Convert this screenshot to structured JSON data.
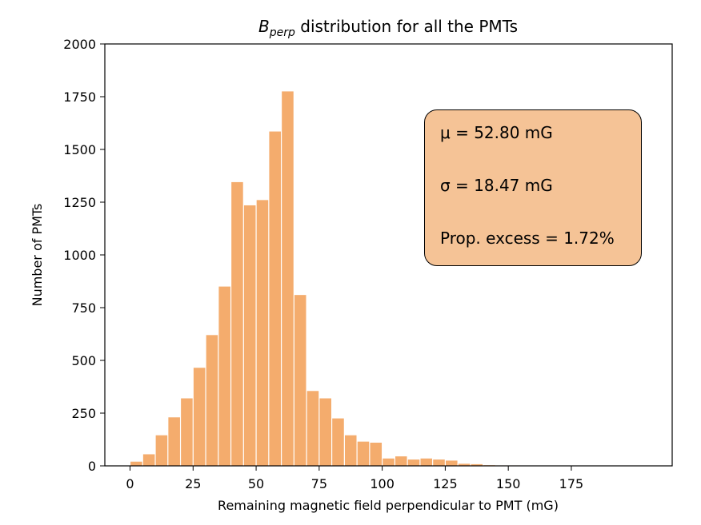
{
  "chart_data": {
    "type": "bar",
    "title": "B_perp distribution for all the PMTs",
    "title_main": "B",
    "title_subscript": "perp",
    "title_rest": " distribution for all the PMTs",
    "xlabel": "Remaining magnetic field perpendicular to PMT (mG)",
    "ylabel": "Number of PMTs",
    "xlim": [
      -10,
      215
    ],
    "ylim": [
      0,
      2000
    ],
    "xticks": [
      0,
      25,
      50,
      75,
      100,
      125,
      150,
      175
    ],
    "yticks": [
      0,
      250,
      500,
      750,
      1000,
      1250,
      1500,
      1750,
      2000
    ],
    "bin_width": 5,
    "bin_starts": [
      0,
      5,
      10,
      15,
      20,
      25,
      30,
      35,
      40,
      45,
      50,
      55,
      60,
      65,
      70,
      75,
      80,
      85,
      90,
      95,
      100,
      105,
      110,
      115,
      120,
      125,
      130,
      135,
      140,
      145,
      150,
      155,
      160,
      165,
      170,
      175,
      180,
      185,
      190,
      195
    ],
    "values": [
      20,
      55,
      145,
      230,
      320,
      465,
      620,
      850,
      1345,
      1235,
      1260,
      1585,
      1775,
      810,
      355,
      320,
      225,
      145,
      115,
      110,
      35,
      45,
      30,
      35,
      30,
      25,
      10,
      8,
      3,
      2,
      2,
      1,
      1,
      1,
      1,
      1,
      1,
      1,
      1,
      1
    ],
    "bar_color": "#f4ac6d",
    "annotation_box_color": "#f5c396"
  },
  "stats": {
    "mean_label": "μ = 52.80 mG",
    "sigma_label": "σ = 18.47 mG",
    "excess_label": "Prop. excess = 1.72%"
  }
}
